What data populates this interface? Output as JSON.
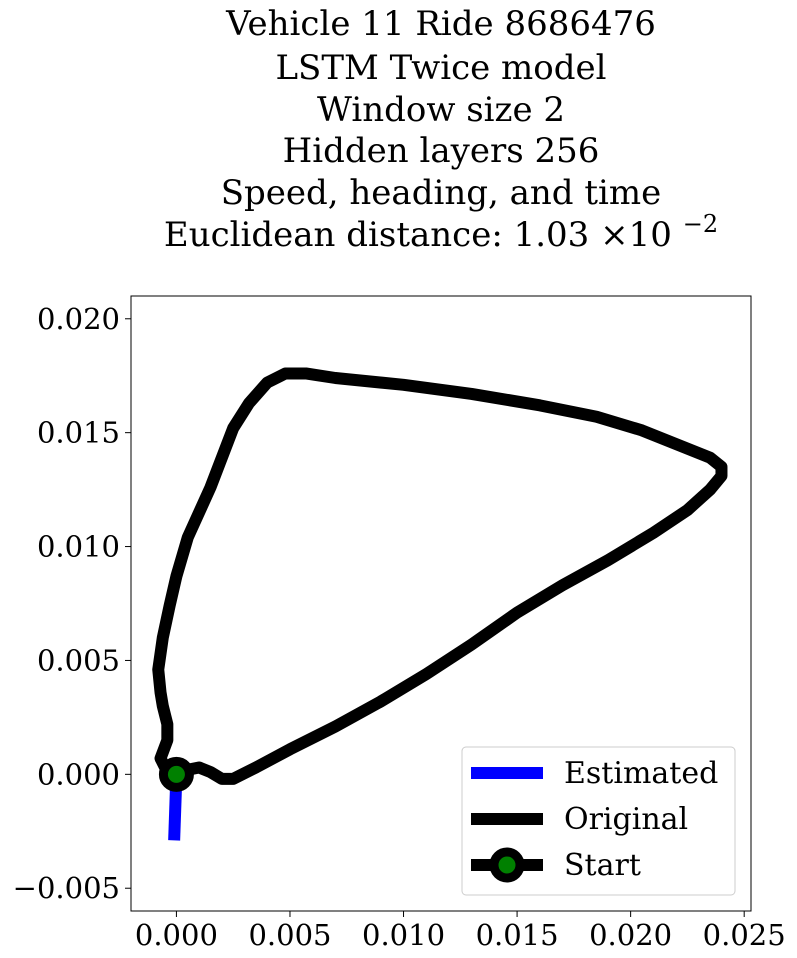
{
  "chart_data": {
    "type": "line",
    "title_lines": [
      "Vehicle 11 Ride 8686476",
      "LSTM Twice model",
      "Window size 2",
      "Hidden layers 256",
      "Speed, heading, and time"
    ],
    "title_last_prefix": "Euclidean distance: 1.03",
    "title_last_sup": "−2",
    "xlabel": "",
    "ylabel": "",
    "xlim": [
      -0.002,
      0.0253
    ],
    "ylim": [
      -0.006,
      0.021
    ],
    "x_ticks": [
      0.0,
      0.005,
      0.01,
      0.015,
      0.02,
      0.025
    ],
    "x_tick_labels": [
      "0.000",
      "0.005",
      "0.010",
      "0.015",
      "0.020",
      "0.025"
    ],
    "y_ticks": [
      -0.005,
      0.0,
      0.005,
      0.01,
      0.015,
      0.02
    ],
    "y_tick_labels": [
      "−0.005",
      "0.000",
      "0.005",
      "0.010",
      "0.015",
      "0.020"
    ],
    "grid": false,
    "legend_position": "lower-right",
    "series": [
      {
        "name": "Estimated",
        "color": "#0000ff",
        "points": [
          [
            0.0,
            0.0
          ],
          [
            -0.0001,
            -0.0029
          ]
        ]
      },
      {
        "name": "Original",
        "color": "#000000",
        "points": [
          [
            0.0,
            0.0
          ],
          [
            -0.0005,
            0.0003
          ],
          [
            -0.0007,
            0.0007
          ],
          [
            -0.0004,
            0.0015
          ],
          [
            -0.0004,
            0.0022
          ],
          [
            -0.0006,
            0.003
          ],
          [
            -0.0007,
            0.0036
          ],
          [
            -0.0008,
            0.0046
          ],
          [
            -0.0006,
            0.006
          ],
          [
            -0.0003,
            0.0074
          ],
          [
            0.0,
            0.0087
          ],
          [
            0.0005,
            0.0104
          ],
          [
            0.0015,
            0.0126
          ],
          [
            0.0025,
            0.0152
          ],
          [
            0.0032,
            0.0163
          ],
          [
            0.004,
            0.0172
          ],
          [
            0.0048,
            0.0176
          ],
          [
            0.0057,
            0.0176
          ],
          [
            0.007,
            0.0174
          ],
          [
            0.01,
            0.0171
          ],
          [
            0.013,
            0.0167
          ],
          [
            0.016,
            0.0162
          ],
          [
            0.0185,
            0.0157
          ],
          [
            0.0205,
            0.0151
          ],
          [
            0.022,
            0.0145
          ],
          [
            0.0235,
            0.0139
          ],
          [
            0.024,
            0.0135
          ],
          [
            0.024,
            0.0131
          ],
          [
            0.0235,
            0.0125
          ],
          [
            0.0225,
            0.0116
          ],
          [
            0.021,
            0.0106
          ],
          [
            0.019,
            0.0094
          ],
          [
            0.017,
            0.0083
          ],
          [
            0.015,
            0.0071
          ],
          [
            0.013,
            0.0057
          ],
          [
            0.011,
            0.0044
          ],
          [
            0.009,
            0.0032
          ],
          [
            0.007,
            0.0021
          ],
          [
            0.005,
            0.0011
          ],
          [
            0.0035,
            0.0003
          ],
          [
            0.0025,
            -0.0002
          ],
          [
            0.002,
            -0.0002
          ],
          [
            0.0015,
            0.0001
          ],
          [
            0.001,
            0.0003
          ],
          [
            0.0005,
            0.0002
          ],
          [
            0.0,
            0.0
          ]
        ]
      },
      {
        "name": "Start",
        "color": "#000000",
        "marker_color": "#008000",
        "points": [
          [
            0.0,
            0.0
          ]
        ]
      }
    ]
  }
}
